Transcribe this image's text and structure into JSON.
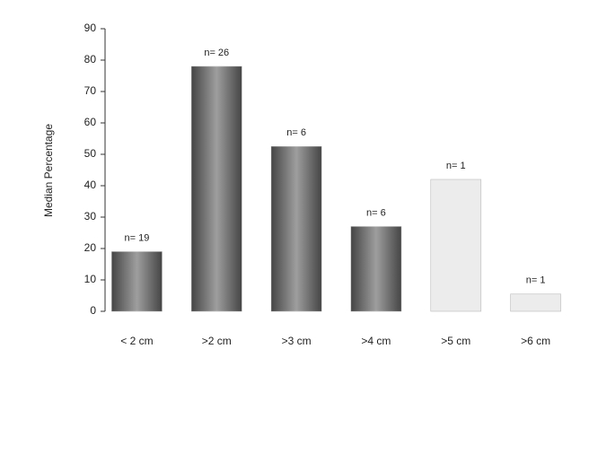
{
  "chart_data": {
    "type": "bar",
    "y_label": "Median Percentage",
    "categories": [
      "< 2 cm",
      ">2 cm",
      ">3 cm",
      ">4 cm",
      ">5 cm",
      ">6 cm"
    ],
    "values": [
      19,
      78,
      52.5,
      27,
      42,
      5.5
    ],
    "colors": [
      "#6a6a6a",
      "#6a6a6a",
      "#6a6a6a",
      "#6a6a6a",
      "#ececec",
      "#ececec"
    ],
    "annotations": [
      "n= 19",
      "n= 26",
      "n= 6",
      "n= 6",
      "n= 1",
      "n= 1"
    ],
    "ylim": [
      0,
      90
    ],
    "yticks": [
      0,
      10,
      20,
      30,
      40,
      50,
      60,
      70,
      80,
      90
    ],
    "grid": false
  }
}
